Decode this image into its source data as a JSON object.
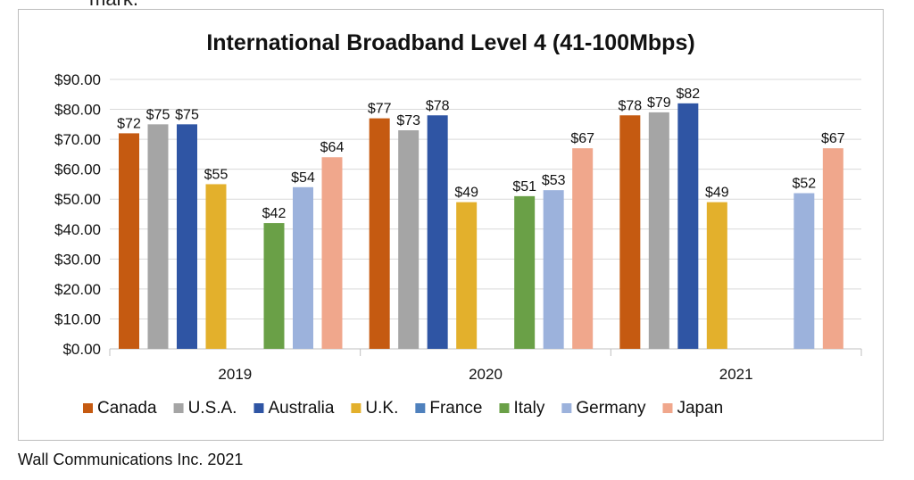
{
  "fragment_text": "mark.",
  "source_note": "Wall Communications Inc. 2021",
  "chart_data": {
    "type": "bar",
    "title": "International Broadband Level 4 (41-100Mbps)",
    "xlabel": "",
    "ylabel": "",
    "ylim": [
      0,
      90
    ],
    "yticks": [
      "$0.00",
      "$10.00",
      "$20.00",
      "$30.00",
      "$40.00",
      "$50.00",
      "$60.00",
      "$70.00",
      "$80.00",
      "$90.00"
    ],
    "categories": [
      "2019",
      "2020",
      "2021"
    ],
    "grid": true,
    "legend_position": "bottom",
    "series": [
      {
        "name": "Canada",
        "color": "#c55a11",
        "values": [
          72,
          77,
          78
        ],
        "labels": [
          "$72",
          "$77",
          "$78"
        ]
      },
      {
        "name": "U.S.A.",
        "color": "#a5a5a5",
        "values": [
          75,
          73,
          79
        ],
        "labels": [
          "$75",
          "$73",
          "$79"
        ]
      },
      {
        "name": "Australia",
        "color": "#2f55a4",
        "values": [
          75,
          78,
          82
        ],
        "labels": [
          "$75",
          "$78",
          "$82"
        ]
      },
      {
        "name": "U.K.",
        "color": "#e3b02c",
        "values": [
          55,
          49,
          49
        ],
        "labels": [
          "$55",
          "$49",
          "$49"
        ]
      },
      {
        "name": "France",
        "color": "#4f81bd",
        "values": [
          null,
          null,
          null
        ],
        "labels": [
          null,
          null,
          null
        ]
      },
      {
        "name": "Italy",
        "color": "#6aa047",
        "values": [
          42,
          51,
          null
        ],
        "labels": [
          "$42",
          "$51",
          null
        ]
      },
      {
        "name": "Germany",
        "color": "#9cb2dc",
        "values": [
          54,
          53,
          52
        ],
        "labels": [
          "$54",
          "$53",
          "$52"
        ]
      },
      {
        "name": "Japan",
        "color": "#f0a78c",
        "values": [
          64,
          67,
          67
        ],
        "labels": [
          "$64",
          "$67",
          "$67"
        ]
      }
    ]
  }
}
